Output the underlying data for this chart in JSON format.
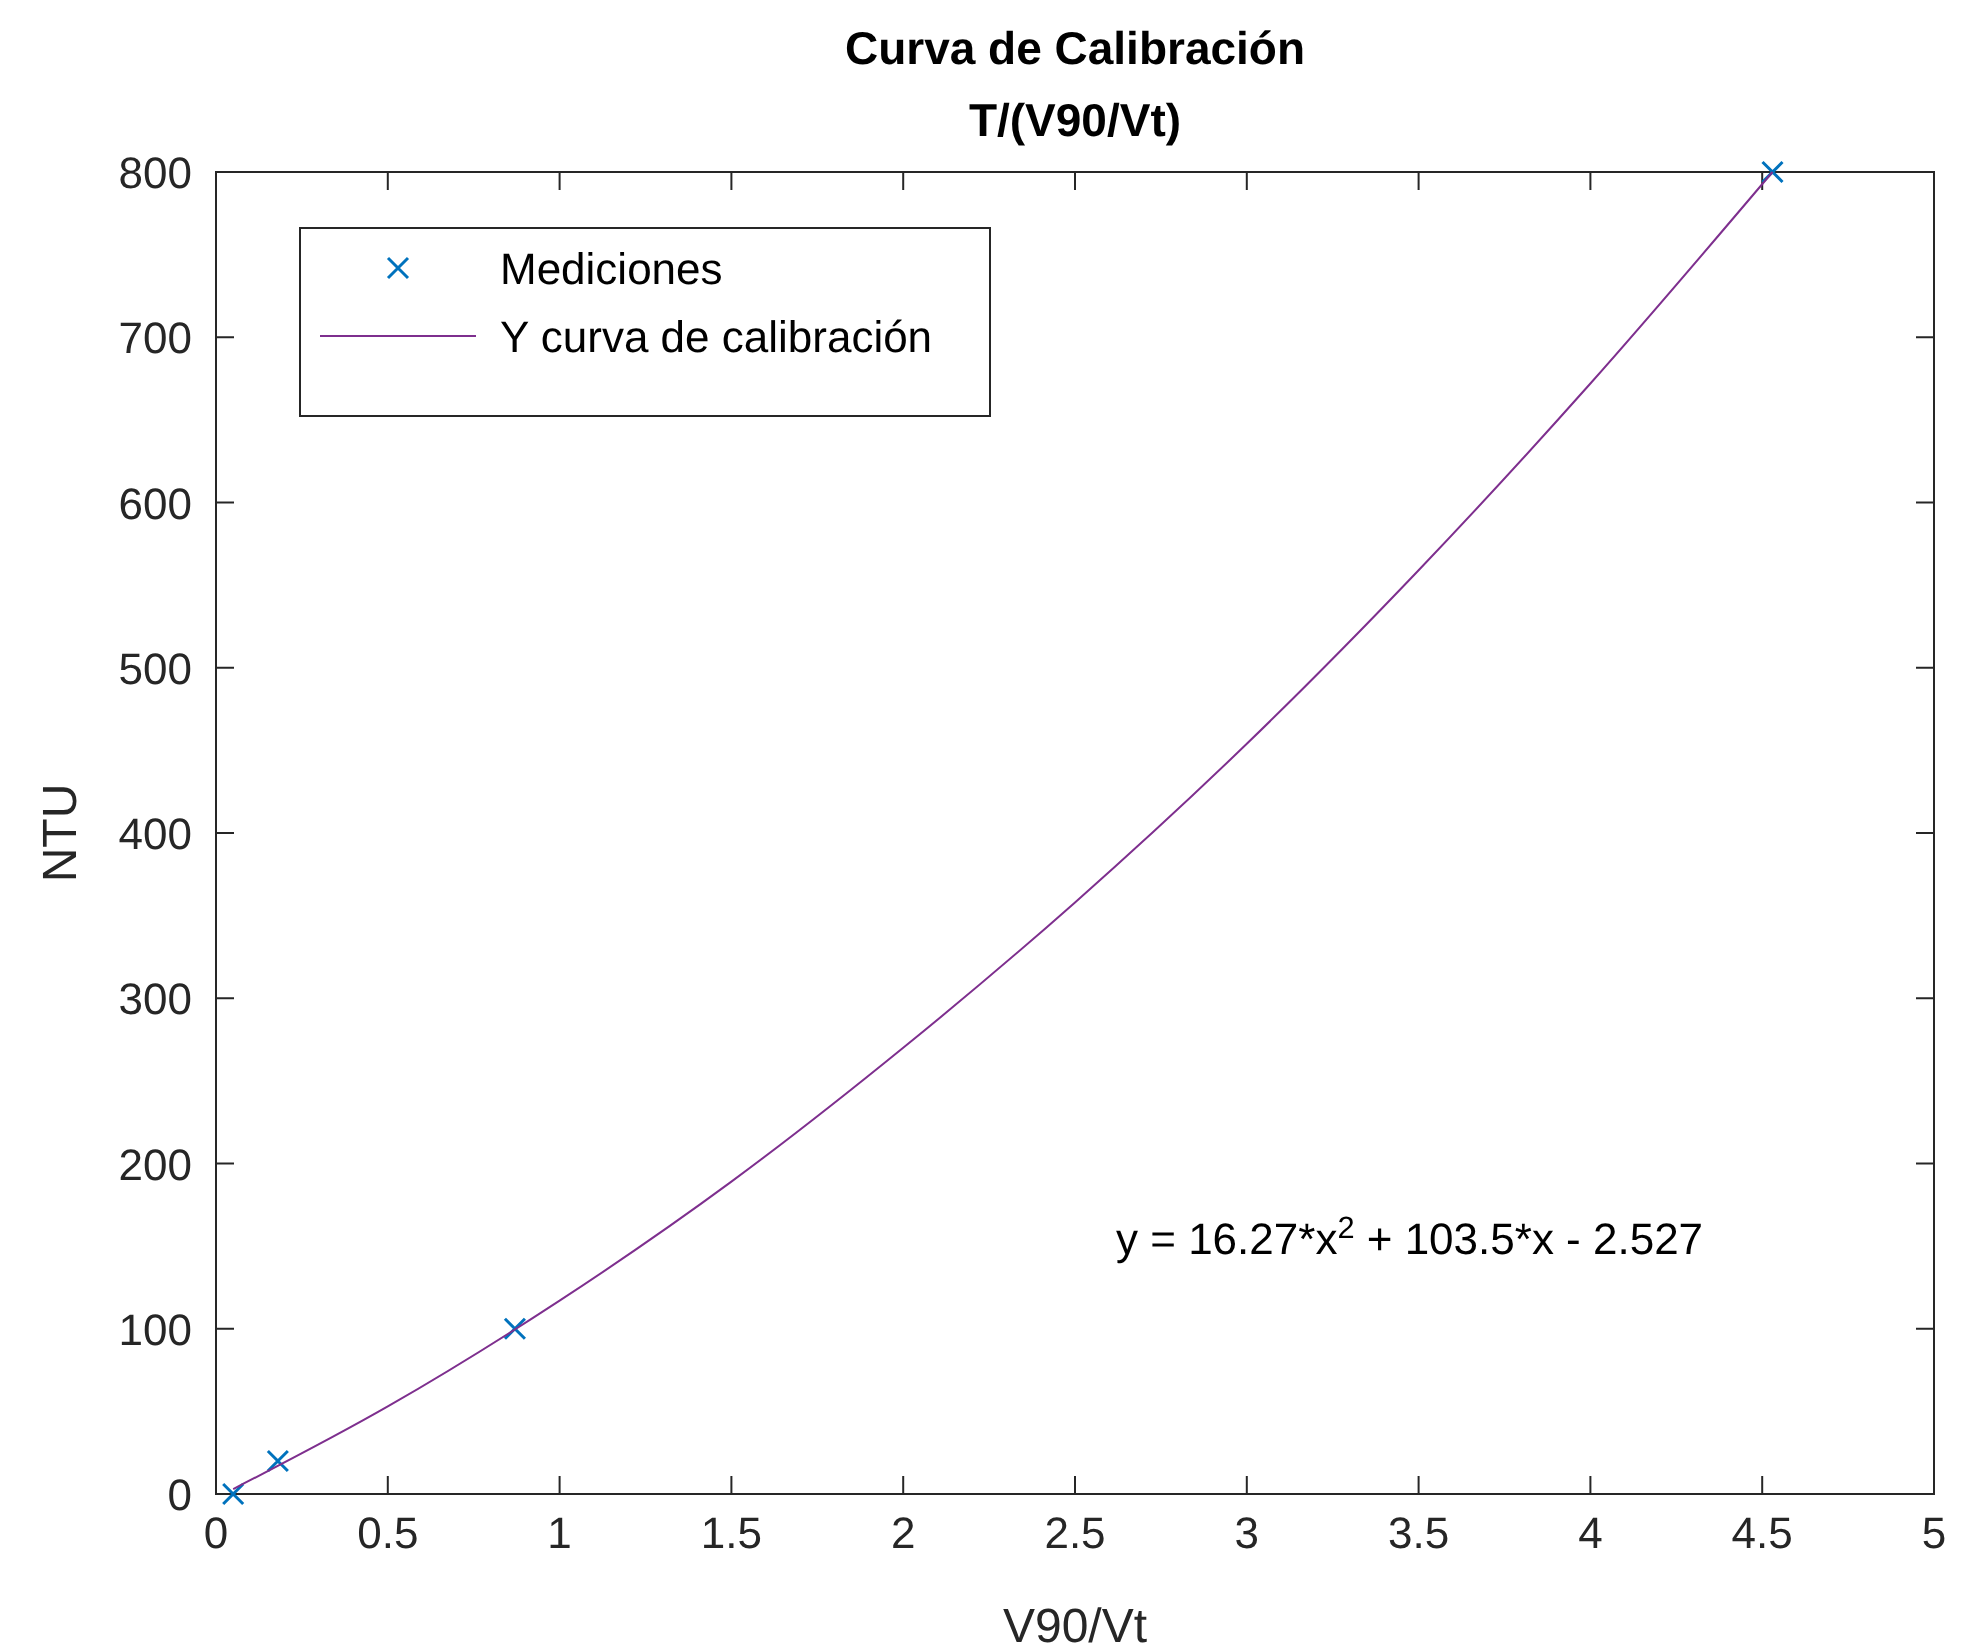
{
  "chart_data": {
    "type": "scatter",
    "title": "Curva de Calibración",
    "subtitle": "T/(V90/Vt)",
    "xlabel": "V90/Vt",
    "ylabel": "NTU",
    "xlim": [
      0,
      5
    ],
    "xticks": [
      0,
      0.5,
      1,
      1.5,
      2,
      2.5,
      3,
      3.5,
      4,
      4.5,
      5
    ],
    "ylim": [
      0,
      800
    ],
    "yticks": [
      0,
      100,
      200,
      300,
      400,
      500,
      600,
      700,
      800
    ],
    "grid": false,
    "legend": "top left",
    "series": [
      {
        "name": "Mediciones",
        "type": "scatter",
        "marker": "cross",
        "color": "#0072bd",
        "x": [
          0.05,
          0.18,
          0.87,
          4.53
        ],
        "values": [
          0,
          20,
          100,
          800
        ]
      },
      {
        "name": "Y curva de calibración",
        "type": "line",
        "marker": "none",
        "line_style": "solid",
        "color": "#7e2f8e",
        "x": [
          0.05,
          0.5,
          1,
          1.5,
          2,
          2.5,
          3,
          3.5,
          4,
          4.53
        ],
        "values": [
          3,
          53,
          117,
          189,
          270,
          358,
          454,
          559,
          672,
          800
        ]
      }
    ],
    "annotations": [
      "y = 16.27*x$^{2}$ + 103.5*x - 2.527"
    ]
  }
}
